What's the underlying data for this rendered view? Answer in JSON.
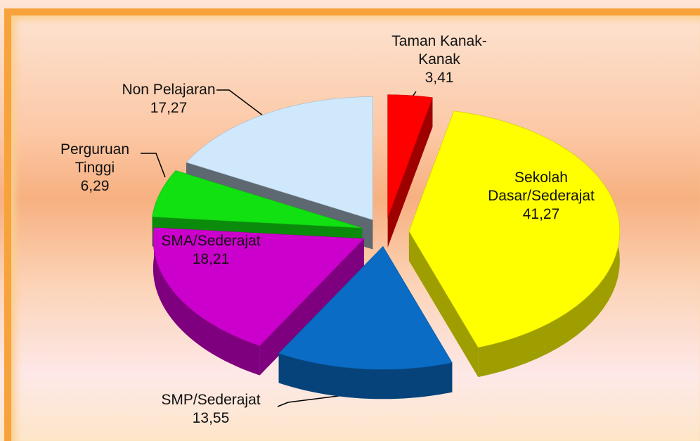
{
  "chart_data": {
    "type": "pie3d",
    "categories": [
      "Taman Kanak-Kanak",
      "Sekolah Dasar/Sederajat",
      "SMP/Sederajat",
      "SMA/Sederajat",
      "Perguruan Tinggi",
      "Non Pelajaran"
    ],
    "values": [
      3.41,
      41.27,
      13.55,
      18.21,
      6.29,
      17.27
    ],
    "value_labels": [
      "3,41",
      "41,27",
      "13,55",
      "18,21",
      "6,29",
      "17,27"
    ],
    "colors": [
      "#ff0000",
      "#ffff00",
      "#0a6cc4",
      "#cc00cc",
      "#11e011",
      "#cfe8fb"
    ]
  }
}
